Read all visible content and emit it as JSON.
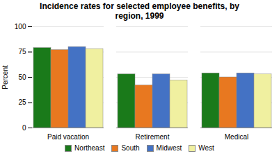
{
  "chart_data": {
    "type": "bar",
    "title": "Incidence rates for selected employee benefits, by\nregion, 1999",
    "categories": [
      "Paid vacation",
      "Retirement",
      "Medical"
    ],
    "series": [
      {
        "name": "Northeast",
        "color": "#1a7a1a",
        "values": [
          79,
          53,
          54
        ]
      },
      {
        "name": "South",
        "color": "#e87820",
        "values": [
          77,
          42,
          50
        ]
      },
      {
        "name": "Midwest",
        "color": "#4472c4",
        "values": [
          80,
          53,
          54
        ]
      },
      {
        "name": "West",
        "color": "#f0f0a0",
        "values": [
          78,
          47,
          53
        ]
      }
    ],
    "ylabel": "Percent",
    "ylim": [
      0,
      100
    ],
    "yticks": [
      0,
      25,
      50,
      75,
      100
    ],
    "grid": true,
    "legend": "bottom"
  }
}
